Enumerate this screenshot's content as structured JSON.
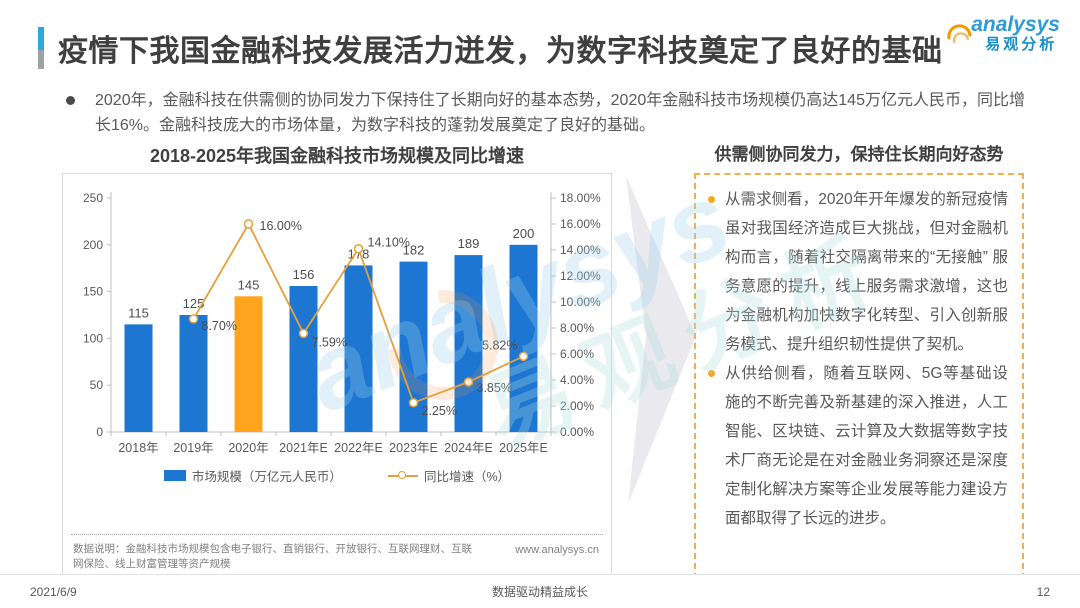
{
  "page": {
    "title": "疫情下我国金融科技发展活力迸发，为数字科技奠定了良好的基础",
    "intro_bullet": "2020年，金融科技在供需侧的协同发力下保持住了长期向好的基本态势，2020年金融科技市场规模仍高达145万亿元人民币，同比增长16%。金融科技庞大的市场体量，为数字科技的蓬勃发展奠定了良好的基础。",
    "logo": {
      "brand": "analysys",
      "brand_cn": "易观分析"
    },
    "watermark": {
      "brand": "analysys",
      "brand_cn": "易观分析"
    },
    "footer": {
      "date": "2021/6/9",
      "slogan": "数据驱动精益成长",
      "page_number": "12"
    }
  },
  "chart": {
    "title": "2018-2025年我国金融科技市场规模及同比增速",
    "legend_bar": "市场规模（万亿元人民币）",
    "legend_line": "同比增速（%）",
    "note": "数据说明：金融科技市场规模包含电子银行、直销银行、开放银行、互联网理财、互联网保险、线上财富管理等资产规模",
    "source_url": "www.analysys.cn"
  },
  "panel": {
    "heading": "供需侧协同发力，保持住长期向好态势",
    "bullets": [
      "从需求侧看，2020年开年爆发的新冠疫情虽对我国经济造成巨大挑战，但对金融机构而言，随着社交隔离带来的“无接触” 服务意愿的提升，线上服务需求激增，这也为金融机构加快数字化转型、引入创新服务模式、提升组织韧性提供了契机。",
      "从供给侧看，随着互联网、5G等基础设施的不断完善及新基建的深入推进，人工智能、区块链、云计算及大数据等数字技术厂商无论是在对金融业务洞察还是深度定制化解决方案等企业发展等能力建设方面都取得了长远的进步。"
    ]
  },
  "chart_data": {
    "type": "bar",
    "title": "2018-2025年我国金融科技市场规模及同比增速",
    "categories": [
      "2018年",
      "2019年",
      "2020年",
      "2021年E",
      "2022年E",
      "2023年E",
      "2024年E",
      "2025年E"
    ],
    "series": [
      {
        "name": "市场规模（万亿元人民币）",
        "type": "bar",
        "values": [
          115,
          125,
          145,
          156,
          178,
          182,
          189,
          200
        ],
        "color": "#1C76D2",
        "highlight_index": 2,
        "highlight_color": "#FFA41C"
      },
      {
        "name": "同比增速（%）",
        "type": "line",
        "values": [
          null,
          8.7,
          16.0,
          7.59,
          14.1,
          2.25,
          3.85,
          5.82
        ],
        "labels": [
          "",
          "8.70%",
          "16.00%",
          "7.59%",
          "14.10%",
          "2.25%",
          "3.85%",
          "5.82%"
        ],
        "color": "#E3A13C",
        "marker": "open-circle"
      }
    ],
    "left_axis": {
      "min": 0,
      "max": 250,
      "step": 50
    },
    "right_axis": {
      "min": 0,
      "max": 18,
      "step": 2,
      "suffix": "%",
      "decimals": 2
    },
    "grid": false,
    "legend_position": "bottom"
  }
}
